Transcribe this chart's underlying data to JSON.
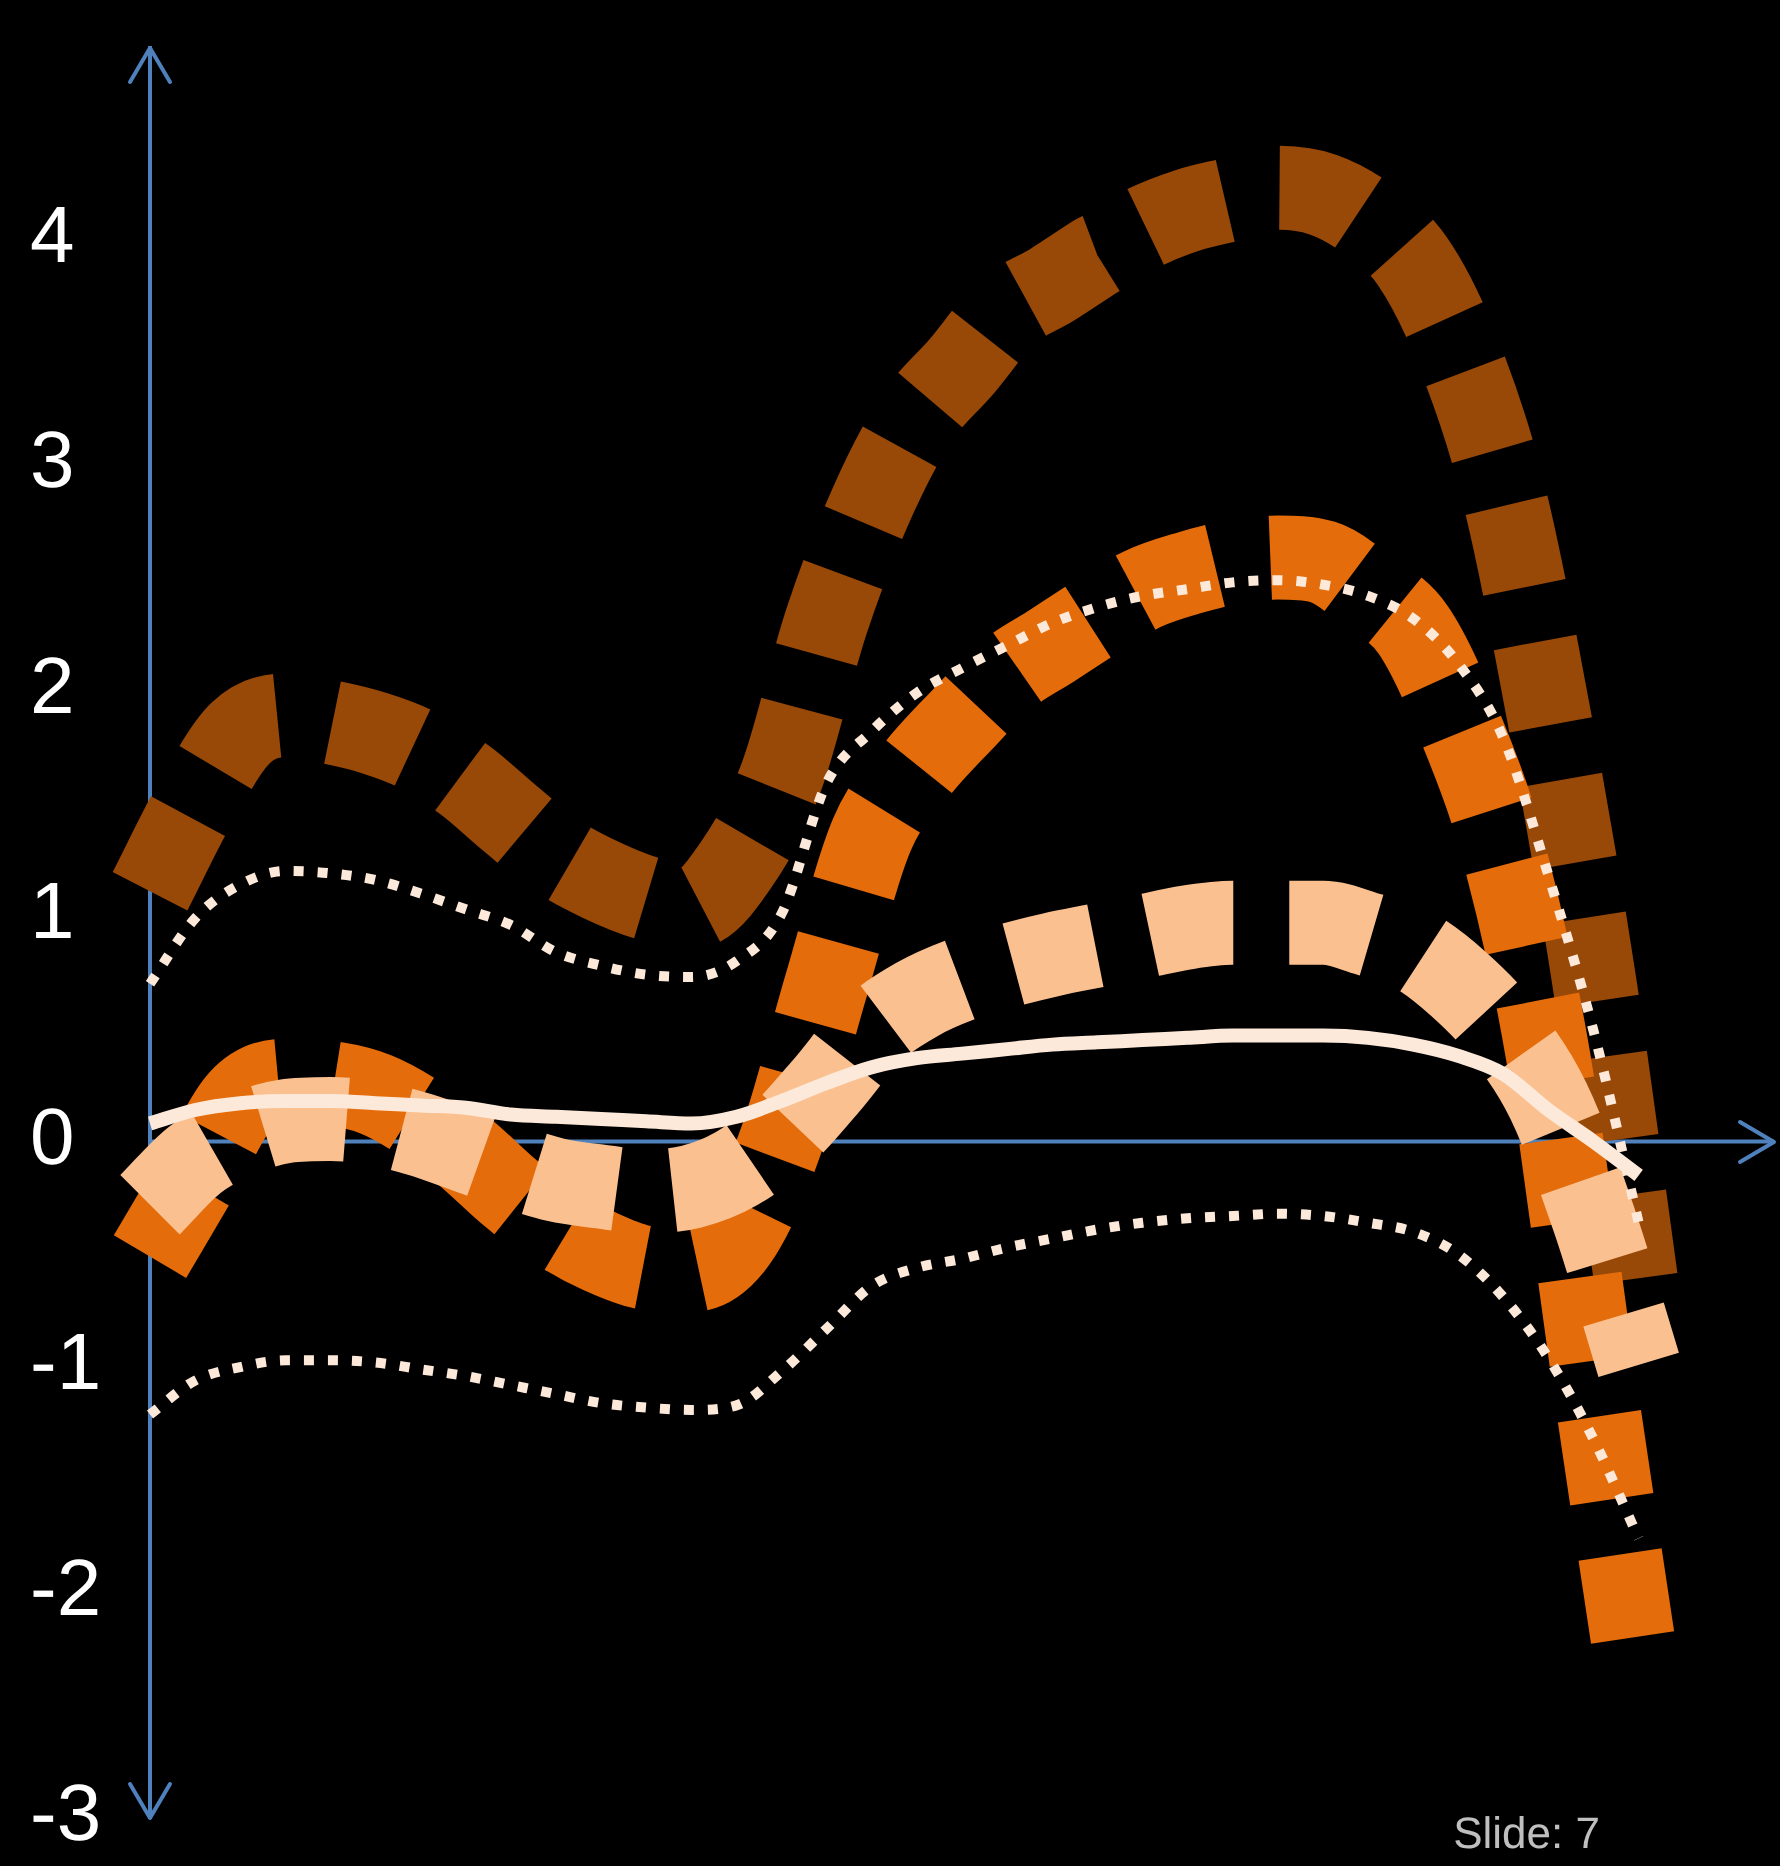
{
  "chart_data": {
    "type": "line",
    "categories": [
      null,
      null,
      null,
      null,
      null,
      null,
      null,
      null,
      null,
      null,
      null,
      null,
      null,
      null,
      null,
      null,
      null,
      null,
      null,
      null,
      null,
      null,
      null,
      null,
      null,
      null,
      null,
      null,
      null,
      null,
      null,
      null,
      null,
      null,
      null,
      null,
      null
    ],
    "series": [
      {
        "color": "#984807",
        "line_style": "dashed",
        "values": [
          1.11,
          1.5,
          1.81,
          1.89,
          1.86,
          1.81,
          1.73,
          1.6,
          1.43,
          1.27,
          1.16,
          1.08,
          1.04,
          1.23,
          1.62,
          2.31,
          2.83,
          3.21,
          3.44,
          3.68,
          3.8,
          3.93,
          4.05,
          4.13,
          4.18,
          4.23,
          4.2,
          4.09,
          3.9,
          3.5,
          2.88,
          1.9,
          0.73,
          -0.7,
          null,
          null,
          null
        ]
      },
      {
        "color": "#e46c0a",
        "line_style": "dashed",
        "values": [
          -0.51,
          -0.17,
          0.18,
          0.27,
          0.26,
          0.21,
          0.1,
          -0.05,
          -0.23,
          -0.38,
          -0.49,
          -0.56,
          -0.57,
          -0.43,
          0.01,
          0.7,
          1.36,
          1.65,
          1.87,
          2.07,
          2.2,
          2.33,
          2.45,
          2.52,
          2.57,
          2.59,
          2.57,
          2.44,
          2.27,
          1.86,
          1.29,
          0.37,
          -1.04,
          -2.38,
          null,
          null,
          null
        ]
      },
      {
        "color": "#fac090",
        "line_style": "dashed",
        "values": [
          -0.28,
          -0.08,
          0.03,
          0.09,
          0.1,
          0.08,
          0.03,
          -0.04,
          -0.11,
          -0.17,
          -0.2,
          -0.22,
          -0.2,
          -0.12,
          0.03,
          0.25,
          0.49,
          0.63,
          0.72,
          0.78,
          0.83,
          0.87,
          0.91,
          0.95,
          0.97,
          0.97,
          0.97,
          0.92,
          0.85,
          0.7,
          0.49,
          0.18,
          -0.34,
          -0.99,
          null,
          null,
          null
        ]
      },
      {
        "color": "#fde9d9",
        "line_style": "dotted",
        "values": [
          0.7,
          0.99,
          1.14,
          1.2,
          1.19,
          1.16,
          1.1,
          1.03,
          0.96,
          0.84,
          0.78,
          0.74,
          0.73,
          0.8,
          1.01,
          1.59,
          1.82,
          1.99,
          2.1,
          2.2,
          2.3,
          2.37,
          2.42,
          2.45,
          2.48,
          2.49,
          2.47,
          2.42,
          2.32,
          2.12,
          1.79,
          1.18,
          0.49,
          -0.36,
          null,
          null,
          null
        ]
      },
      {
        "color": "#fde9d9",
        "line_style": "dotted",
        "values": [
          -1.21,
          -1.06,
          -1,
          -0.97,
          -0.97,
          -0.98,
          -1.01,
          -1.04,
          -1.08,
          -1.12,
          -1.16,
          -1.18,
          -1.19,
          -1.17,
          -1.02,
          -0.83,
          -0.64,
          -0.56,
          -0.52,
          -0.47,
          -0.43,
          -0.39,
          -0.36,
          -0.34,
          -0.33,
          -0.32,
          -0.33,
          -0.36,
          -0.4,
          -0.5,
          -0.69,
          -0.96,
          -1.32,
          -1.76,
          null,
          null,
          null
        ]
      },
      {
        "color": "#fde9d9",
        "line_style": "solid",
        "values": [
          0.08,
          0.14,
          0.17,
          0.18,
          0.18,
          0.17,
          0.16,
          0.15,
          0.12,
          0.11,
          0.1,
          0.09,
          0.08,
          0.11,
          0.18,
          0.26,
          0.33,
          0.37,
          0.39,
          0.41,
          0.43,
          0.44,
          0.45,
          0.46,
          0.47,
          0.47,
          0.47,
          0.46,
          0.43,
          0.38,
          0.3,
          0.14,
          0,
          -0.15,
          null,
          null,
          null
        ]
      }
    ],
    "ylim": [
      -3,
      4.85
    ],
    "yticks": [
      -3,
      -2,
      -1,
      0,
      1,
      2,
      3,
      4
    ],
    "ref_lines": [
      {
        "axis": "y",
        "value": 0,
        "color": "#4f81bd"
      }
    ],
    "tick_labels": "y",
    "grid": false,
    "legend": false,
    "marker": "none",
    "annotations": [
      "Slide: 7"
    ]
  }
}
